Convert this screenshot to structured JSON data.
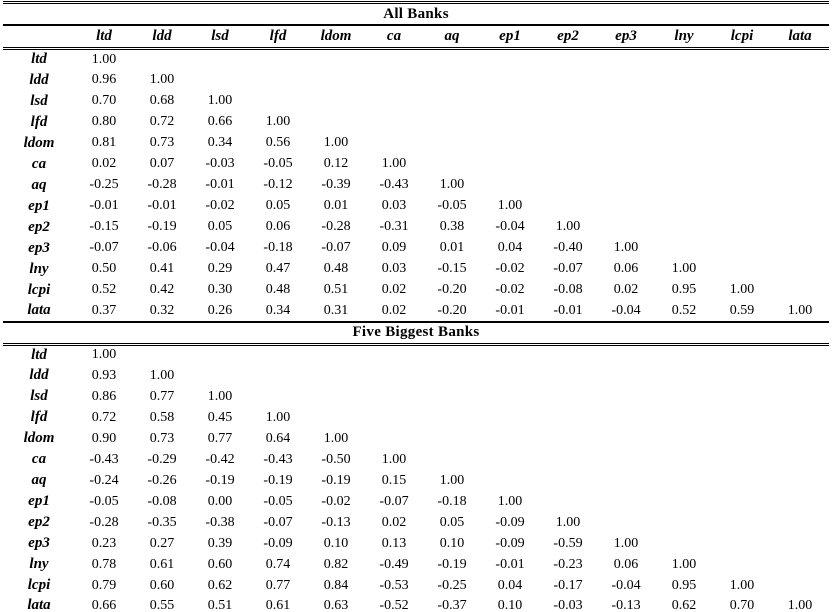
{
  "page": {
    "background_color": "#ffffff",
    "text_color": "#000000"
  },
  "table": {
    "kind": "correlation-matrix",
    "columns": [
      "ltd",
      "ldd",
      "lsd",
      "lfd",
      "ldom",
      "ca",
      "aq",
      "ep1",
      "ep2",
      "ep3",
      "lny",
      "lcpi",
      "lata"
    ],
    "sections": [
      {
        "title": "All Banks",
        "rows": [
          {
            "label": "ltd",
            "values": [
              "1.00"
            ]
          },
          {
            "label": "ldd",
            "values": [
              "0.96",
              "1.00"
            ]
          },
          {
            "label": "lsd",
            "values": [
              "0.70",
              "0.68",
              "1.00"
            ]
          },
          {
            "label": "lfd",
            "values": [
              "0.80",
              "0.72",
              "0.66",
              "1.00"
            ]
          },
          {
            "label": "ldom",
            "values": [
              "0.81",
              "0.73",
              "0.34",
              "0.56",
              "1.00"
            ]
          },
          {
            "label": "ca",
            "values": [
              "0.02",
              "0.07",
              "-0.03",
              "-0.05",
              "0.12",
              "1.00"
            ]
          },
          {
            "label": "aq",
            "values": [
              "-0.25",
              "-0.28",
              "-0.01",
              "-0.12",
              "-0.39",
              "-0.43",
              "1.00"
            ]
          },
          {
            "label": "ep1",
            "values": [
              "-0.01",
              "-0.01",
              "-0.02",
              "0.05",
              "0.01",
              "0.03",
              "-0.05",
              "1.00"
            ]
          },
          {
            "label": "ep2",
            "values": [
              "-0.15",
              "-0.19",
              "0.05",
              "0.06",
              "-0.28",
              "-0.31",
              "0.38",
              "-0.04",
              "1.00"
            ]
          },
          {
            "label": "ep3",
            "values": [
              "-0.07",
              "-0.06",
              "-0.04",
              "-0.18",
              "-0.07",
              "0.09",
              "0.01",
              "0.04",
              "-0.40",
              "1.00"
            ]
          },
          {
            "label": "lny",
            "values": [
              "0.50",
              "0.41",
              "0.29",
              "0.47",
              "0.48",
              "0.03",
              "-0.15",
              "-0.02",
              "-0.07",
              "0.06",
              "1.00"
            ]
          },
          {
            "label": "lcpi",
            "values": [
              "0.52",
              "0.42",
              "0.30",
              "0.48",
              "0.51",
              "0.02",
              "-0.20",
              "-0.02",
              "-0.08",
              "0.02",
              "0.95",
              "1.00"
            ]
          },
          {
            "label": "lata",
            "values": [
              "0.37",
              "0.32",
              "0.26",
              "0.34",
              "0.31",
              "0.02",
              "-0.20",
              "-0.01",
              "-0.01",
              "-0.04",
              "0.52",
              "0.59",
              "1.00"
            ]
          }
        ]
      },
      {
        "title": "Five Biggest Banks",
        "rows": [
          {
            "label": "ltd",
            "values": [
              "1.00"
            ]
          },
          {
            "label": "ldd",
            "values": [
              "0.93",
              "1.00"
            ]
          },
          {
            "label": "lsd",
            "values": [
              "0.86",
              "0.77",
              "1.00"
            ]
          },
          {
            "label": "lfd",
            "values": [
              "0.72",
              "0.58",
              "0.45",
              "1.00"
            ]
          },
          {
            "label": "ldom",
            "values": [
              "0.90",
              "0.73",
              "0.77",
              "0.64",
              "1.00"
            ]
          },
          {
            "label": "ca",
            "values": [
              "-0.43",
              "-0.29",
              "-0.42",
              "-0.43",
              "-0.50",
              "1.00"
            ]
          },
          {
            "label": "aq",
            "values": [
              "-0.24",
              "-0.26",
              "-0.19",
              "-0.19",
              "-0.19",
              "0.15",
              "1.00"
            ]
          },
          {
            "label": "ep1",
            "values": [
              "-0.05",
              "-0.08",
              "0.00",
              "-0.05",
              "-0.02",
              "-0.07",
              "-0.18",
              "1.00"
            ]
          },
          {
            "label": "ep2",
            "values": [
              "-0.28",
              "-0.35",
              "-0.38",
              "-0.07",
              "-0.13",
              "0.02",
              "0.05",
              "-0.09",
              "1.00"
            ]
          },
          {
            "label": "ep3",
            "values": [
              "0.23",
              "0.27",
              "0.39",
              "-0.09",
              "0.10",
              "0.13",
              "0.10",
              "-0.09",
              "-0.59",
              "1.00"
            ]
          },
          {
            "label": "lny",
            "values": [
              "0.78",
              "0.61",
              "0.60",
              "0.74",
              "0.82",
              "-0.49",
              "-0.19",
              "-0.01",
              "-0.23",
              "0.06",
              "1.00"
            ]
          },
          {
            "label": "lcpi",
            "values": [
              "0.79",
              "0.60",
              "0.62",
              "0.77",
              "0.84",
              "-0.53",
              "-0.25",
              "0.04",
              "-0.17",
              "-0.04",
              "0.95",
              "1.00"
            ]
          },
          {
            "label": "lata",
            "values": [
              "0.66",
              "0.55",
              "0.51",
              "0.61",
              "0.63",
              "-0.52",
              "-0.37",
              "0.10",
              "-0.03",
              "-0.13",
              "0.62",
              "0.70",
              "1.00"
            ]
          }
        ]
      }
    ]
  }
}
